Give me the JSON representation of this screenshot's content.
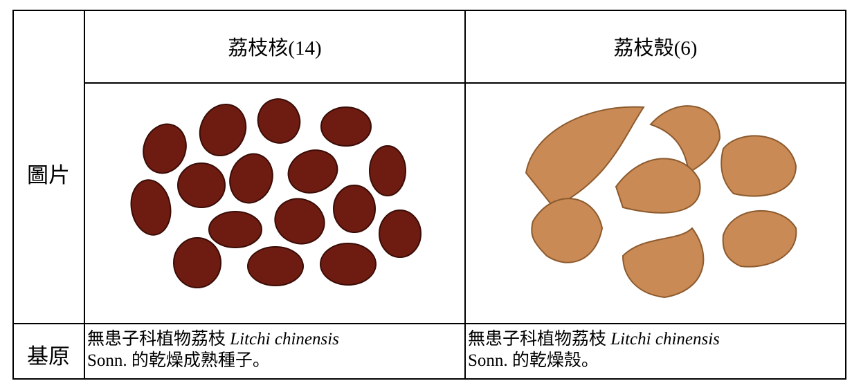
{
  "table": {
    "header": [
      "荔枝核(14)",
      "荔枝殼(6)"
    ],
    "rows": [
      {
        "label": "圖片"
      },
      {
        "label": "基原",
        "cells": [
          {
            "prefix": "無患子科植物荔枝",
            "species": "Litchi chinensis",
            "suffix": "Sonn. 的乾燥成熟種子。"
          },
          {
            "prefix": "無患子科植物荔枝",
            "species": "Litchi chinensis",
            "suffix": "Sonn. 的乾燥殼。"
          }
        ]
      }
    ]
  }
}
